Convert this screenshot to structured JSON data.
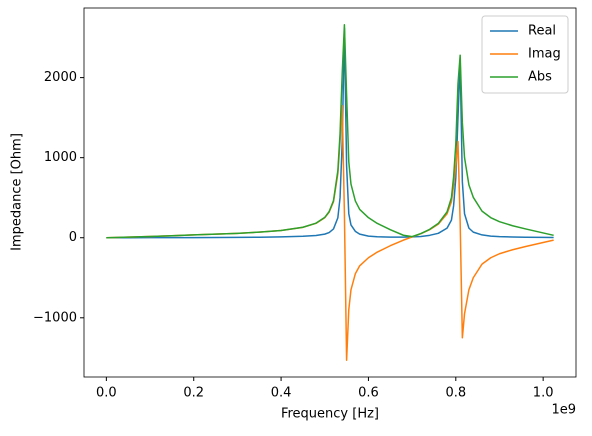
{
  "chart_data": {
    "type": "line",
    "xlabel": "Frequency [Hz]",
    "ylabel": "Impedance [Ohm]",
    "x_offset_text": "1e9",
    "x": [
      0,
      0.05,
      0.1,
      0.15,
      0.2,
      0.25,
      0.3,
      0.35,
      0.4,
      0.45,
      0.48,
      0.5,
      0.51,
      0.52,
      0.53,
      0.535,
      0.54,
      0.545,
      0.55,
      0.555,
      0.56,
      0.57,
      0.58,
      0.6,
      0.62,
      0.65,
      0.68,
      0.7,
      0.72,
      0.74,
      0.76,
      0.78,
      0.79,
      0.795,
      0.8,
      0.805,
      0.81,
      0.815,
      0.82,
      0.83,
      0.84,
      0.86,
      0.88,
      0.9,
      0.93,
      0.96,
      1.0,
      1.024
    ],
    "series": [
      {
        "name": "Real",
        "color": "#1f77b4",
        "values": [
          0,
          0,
          1,
          1,
          2,
          3,
          4,
          6,
          10,
          18,
          28,
          45,
          65,
          110,
          250,
          500,
          1200,
          2620,
          900,
          300,
          160,
          80,
          45,
          20,
          12,
          8,
          8,
          10,
          16,
          30,
          55,
          120,
          220,
          400,
          750,
          1500,
          2200,
          700,
          300,
          120,
          70,
          35,
          20,
          14,
          9,
          6,
          4,
          3
        ]
      },
      {
        "name": "Imag",
        "color": "#ff7f0e",
        "values": [
          0,
          8,
          16,
          25,
          35,
          45,
          55,
          70,
          90,
          130,
          180,
          250,
          320,
          450,
          800,
          1200,
          1650,
          300,
          -1530,
          -900,
          -650,
          -450,
          -350,
          -250,
          -180,
          -100,
          -30,
          10,
          50,
          100,
          170,
          300,
          450,
          650,
          900,
          1200,
          200,
          -1250,
          -950,
          -650,
          -500,
          -330,
          -250,
          -200,
          -150,
          -110,
          -60,
          -30
        ]
      },
      {
        "name": "Abs",
        "color": "#2ca02c",
        "values": [
          0,
          8,
          16,
          25,
          35,
          45,
          55,
          70,
          90,
          131,
          182,
          254,
          326,
          463,
          838,
          1300,
          2060,
          2660,
          1780,
          950,
          670,
          460,
          353,
          251,
          180,
          100,
          31,
          14,
          52,
          104,
          179,
          323,
          500,
          760,
          1170,
          1920,
          2280,
          1440,
          1000,
          660,
          505,
          332,
          251,
          200,
          150,
          110,
          60,
          30
        ]
      }
    ],
    "xlim": [
      -0.0512,
      1.0752
    ],
    "xticks": [
      {
        "value": 0,
        "label": "0.0"
      },
      0.2,
      0.4,
      0.6,
      0.8,
      {
        "value": 1,
        "label": "1.0"
      }
    ],
    "ylim": [
      -1739.5,
      2869.5
    ],
    "yticks": [
      {
        "value": -1000,
        "label": "−1000"
      },
      0,
      1000,
      2000
    ],
    "legend": "upper right",
    "grid": false
  }
}
